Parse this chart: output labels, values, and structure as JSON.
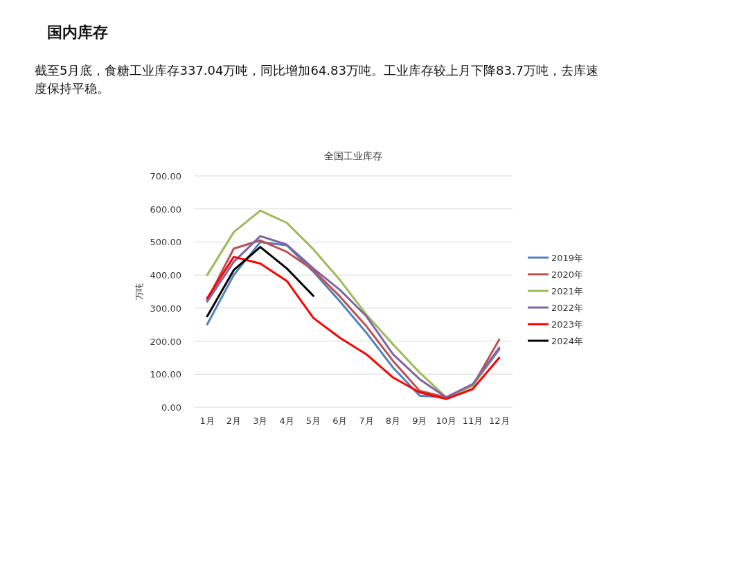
{
  "chart_data": {
    "type": "line",
    "title": "全国工业库存",
    "ylabel": "万吨",
    "annotations": [
      "国内库存",
      "截至5月底，食糖工业库存337.04万吨，同比增加64.83万吨。工业库存较上月下降83.7万吨，去库速度保持平稳。"
    ],
    "categories": [
      "1月",
      "2月",
      "3月",
      "4月",
      "5月",
      "6月",
      "7月",
      "8月",
      "9月",
      "10月",
      "11月",
      "12月"
    ],
    "ylim": [
      0,
      700
    ],
    "yticks": [
      {
        "value": 0,
        "label": "0.00"
      },
      {
        "value": 100,
        "label": "100.00"
      },
      {
        "value": 200,
        "label": "200.00"
      },
      {
        "value": 300,
        "label": "300.00"
      },
      {
        "value": 400,
        "label": "400.00"
      },
      {
        "value": 500,
        "label": "500.00"
      },
      {
        "value": 600,
        "label": "600.00"
      },
      {
        "value": 700,
        "label": "700.00"
      }
    ],
    "grid": "y",
    "legend": "right",
    "marker": "none",
    "line_style": "solid",
    "series": [
      {
        "name": "2019年",
        "color": "#4f81bd",
        "values": [
          251,
          400,
          500,
          490,
          410,
          320,
          225,
          120,
          35,
          30,
          65,
          175
        ]
      },
      {
        "name": "2020年",
        "color": "#c0504d",
        "values": [
          325,
          480,
          505,
          470,
          415,
          335,
          245,
          140,
          50,
          30,
          65,
          205
        ]
      },
      {
        "name": "2021年",
        "color": "#9bbb59",
        "values": [
          400,
          530,
          595,
          558,
          478,
          385,
          280,
          190,
          105,
          30,
          65,
          180
        ]
      },
      {
        "name": "2022年",
        "color": "#8064a2",
        "values": [
          320,
          440,
          518,
          492,
          420,
          355,
          275,
          160,
          85,
          30,
          70,
          180
        ]
      },
      {
        "name": "2023年",
        "color": "#ff0000",
        "values": [
          330,
          455,
          435,
          382,
          270,
          210,
          160,
          90,
          45,
          25,
          55,
          150
        ]
      },
      {
        "name": "2024年",
        "color": "#000000",
        "values": [
          275,
          415,
          485,
          420,
          337,
          null,
          null,
          null,
          null,
          null,
          null,
          null
        ]
      }
    ]
  }
}
